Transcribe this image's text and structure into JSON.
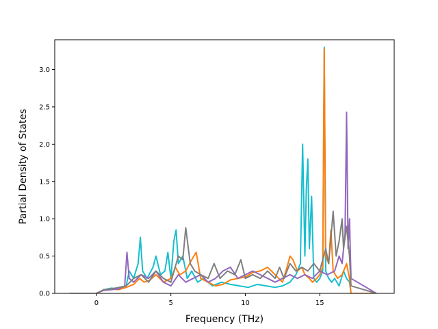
{
  "chart_data": {
    "type": "line",
    "title": "",
    "xlabel": "Frequency (THz)",
    "ylabel": "Partial Density of States",
    "xlim": [
      -2.8,
      20.0
    ],
    "ylim": [
      0.0,
      3.4
    ],
    "xticks": [
      0,
      5,
      10,
      15
    ],
    "xtick_labels": [
      "0",
      "5",
      "10",
      "15"
    ],
    "yticks": [
      0.0,
      0.5,
      1.0,
      1.5,
      2.0,
      2.5,
      3.0
    ],
    "ytick_labels": [
      "0.0",
      "0.5",
      "1.0",
      "1.5",
      "2.0",
      "2.5",
      "3.0"
    ],
    "grid": false,
    "legend": "none",
    "series": [
      {
        "color": "#17becf",
        "x": [
          -1.8,
          0.0,
          0.5,
          1.0,
          1.5,
          2.0,
          2.2,
          2.5,
          2.8,
          2.95,
          3.1,
          3.4,
          3.8,
          4.0,
          4.3,
          4.6,
          4.8,
          5.0,
          5.2,
          5.35,
          5.5,
          5.8,
          6.1,
          6.4,
          6.8,
          7.2,
          7.8,
          8.4,
          9.0,
          9.6,
          10.2,
          10.8,
          11.4,
          12.0,
          12.5,
          13.0,
          13.4,
          13.7,
          13.85,
          14.0,
          14.1,
          14.2,
          14.3,
          14.45,
          14.6,
          14.8,
          15.0,
          15.2,
          15.3,
          15.4,
          15.6,
          15.8,
          16.0,
          16.3,
          16.6,
          16.8,
          17.0,
          17.1,
          18.8
        ],
        "y": [
          0.0,
          0.0,
          0.05,
          0.07,
          0.06,
          0.1,
          0.3,
          0.2,
          0.4,
          0.75,
          0.3,
          0.2,
          0.35,
          0.5,
          0.25,
          0.3,
          0.55,
          0.2,
          0.7,
          0.85,
          0.4,
          0.5,
          0.2,
          0.3,
          0.15,
          0.2,
          0.1,
          0.15,
          0.12,
          0.1,
          0.08,
          0.12,
          0.1,
          0.08,
          0.1,
          0.15,
          0.25,
          0.4,
          2.0,
          0.5,
          1.4,
          1.8,
          0.6,
          1.3,
          0.2,
          0.15,
          0.2,
          0.3,
          3.3,
          0.3,
          0.2,
          0.15,
          0.2,
          0.1,
          0.3,
          0.2,
          0.15,
          0.0,
          0.0
        ]
      },
      {
        "color": "#ff7f0e",
        "x": [
          -1.8,
          0.0,
          0.5,
          1.0,
          1.5,
          2.0,
          2.5,
          2.9,
          3.2,
          3.6,
          4.0,
          4.5,
          5.0,
          5.3,
          5.6,
          6.0,
          6.4,
          6.7,
          7.0,
          7.5,
          8.0,
          8.5,
          9.0,
          9.5,
          10.0,
          10.5,
          11.0,
          11.5,
          12.0,
          12.5,
          12.8,
          13.0,
          13.2,
          13.5,
          13.8,
          14.0,
          14.3,
          14.5,
          14.8,
          15.0,
          15.2,
          15.3,
          15.4,
          15.6,
          15.75,
          15.9,
          16.2,
          16.5,
          16.8,
          17.0,
          17.1,
          18.8
        ],
        "y": [
          0.0,
          0.0,
          0.05,
          0.06,
          0.05,
          0.08,
          0.12,
          0.2,
          0.15,
          0.18,
          0.25,
          0.15,
          0.2,
          0.35,
          0.25,
          0.3,
          0.45,
          0.55,
          0.2,
          0.15,
          0.1,
          0.12,
          0.18,
          0.2,
          0.22,
          0.28,
          0.3,
          0.35,
          0.25,
          0.15,
          0.35,
          0.5,
          0.45,
          0.3,
          0.35,
          0.25,
          0.2,
          0.15,
          0.2,
          0.25,
          0.35,
          3.28,
          0.5,
          0.4,
          0.85,
          0.3,
          0.2,
          0.25,
          0.4,
          0.2,
          0.0,
          0.0
        ]
      },
      {
        "color": "#9467bd",
        "x": [
          -1.8,
          0.0,
          0.5,
          1.0,
          1.5,
          1.9,
          2.05,
          2.2,
          2.5,
          3.0,
          3.5,
          4.0,
          4.5,
          5.0,
          5.5,
          6.0,
          6.5,
          7.0,
          7.5,
          8.0,
          8.5,
          9.0,
          9.5,
          10.0,
          10.5,
          11.0,
          11.5,
          12.0,
          12.5,
          13.0,
          13.5,
          14.0,
          14.5,
          15.0,
          15.5,
          16.0,
          16.3,
          16.5,
          16.7,
          16.8,
          16.9,
          17.0,
          17.1,
          18.8
        ],
        "y": [
          0.0,
          0.0,
          0.04,
          0.05,
          0.06,
          0.1,
          0.55,
          0.2,
          0.15,
          0.25,
          0.2,
          0.3,
          0.15,
          0.1,
          0.25,
          0.15,
          0.2,
          0.25,
          0.15,
          0.2,
          0.3,
          0.35,
          0.2,
          0.25,
          0.3,
          0.25,
          0.2,
          0.15,
          0.2,
          0.25,
          0.2,
          0.25,
          0.2,
          0.3,
          0.25,
          0.3,
          0.5,
          0.4,
          0.8,
          2.43,
          0.6,
          1.0,
          0.2,
          0.0
        ]
      },
      {
        "color": "#7f7f7f",
        "x": [
          -1.8,
          0.0,
          0.5,
          1.0,
          1.5,
          2.0,
          2.5,
          3.0,
          3.5,
          4.0,
          4.5,
          5.0,
          5.5,
          5.8,
          6.0,
          6.3,
          6.6,
          7.0,
          7.5,
          7.9,
          8.3,
          8.8,
          9.3,
          9.7,
          10.0,
          10.5,
          11.0,
          11.5,
          12.0,
          12.3,
          12.6,
          13.0,
          13.4,
          13.8,
          14.2,
          14.6,
          15.0,
          15.4,
          15.6,
          15.9,
          16.1,
          16.3,
          16.5,
          16.6,
          16.8,
          17.0,
          17.1,
          18.8
        ],
        "y": [
          0.0,
          0.0,
          0.05,
          0.06,
          0.08,
          0.1,
          0.2,
          0.25,
          0.15,
          0.3,
          0.2,
          0.15,
          0.5,
          0.45,
          0.88,
          0.4,
          0.3,
          0.25,
          0.2,
          0.4,
          0.2,
          0.3,
          0.25,
          0.45,
          0.2,
          0.25,
          0.2,
          0.3,
          0.2,
          0.35,
          0.2,
          0.4,
          0.3,
          0.35,
          0.3,
          0.4,
          0.3,
          0.6,
          0.4,
          1.1,
          0.5,
          0.7,
          1.0,
          0.6,
          0.9,
          0.5,
          0.1,
          0.0
        ]
      }
    ]
  }
}
